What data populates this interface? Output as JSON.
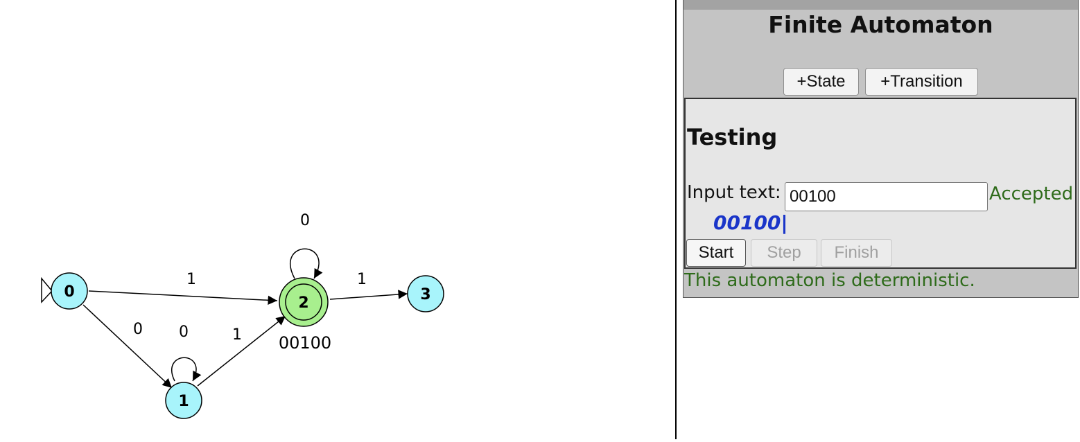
{
  "graph": {
    "states": [
      {
        "id": "s0",
        "label": "0",
        "start": true,
        "accepting": false,
        "highlighted": false
      },
      {
        "id": "s1",
        "label": "1",
        "start": false,
        "accepting": false,
        "highlighted": false
      },
      {
        "id": "s2",
        "label": "2",
        "start": false,
        "accepting": true,
        "highlighted": true,
        "annotation": "00100"
      },
      {
        "id": "s3",
        "label": "3",
        "start": false,
        "accepting": false,
        "highlighted": false
      }
    ],
    "transitions": [
      {
        "from": "s0",
        "to": "s2",
        "symbol": "1"
      },
      {
        "from": "s0",
        "to": "s1",
        "symbol": "0"
      },
      {
        "from": "s1",
        "to": "s1",
        "symbol": "0"
      },
      {
        "from": "s1",
        "to": "s2",
        "symbol": "1"
      },
      {
        "from": "s2",
        "to": "s2",
        "symbol": "0"
      },
      {
        "from": "s2",
        "to": "s3",
        "symbol": "1"
      }
    ],
    "colors": {
      "state": "#a8f4fb",
      "highlighted": "#a8ef8e",
      "edge": "#000000"
    }
  },
  "panel": {
    "title": "Finite Automaton",
    "add_state_label": "+State",
    "add_transition_label": "+Transition",
    "testing": {
      "heading": "Testing",
      "input_label": "Input text:",
      "input_value": "00100",
      "result": "Accepted",
      "trace": "00100|",
      "start_label": "Start",
      "step_label": "Step",
      "finish_label": "Finish"
    },
    "status": "This automaton is deterministic."
  }
}
